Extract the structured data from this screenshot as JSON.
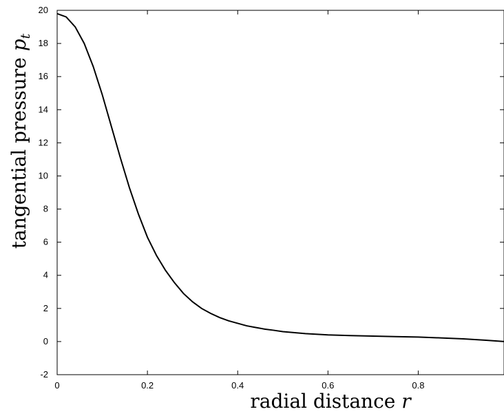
{
  "chart_data": {
    "type": "line",
    "xlabel": "radial distance",
    "xlabel_var": "r",
    "ylabel": "tangential pressure",
    "ylabel_var": "p",
    "ylabel_sub": "t",
    "xlim": [
      0,
      0.99
    ],
    "ylim": [
      -2,
      20
    ],
    "xticks": [
      0,
      0.2,
      0.4,
      0.6,
      0.8
    ],
    "xtick_labels": [
      "0",
      "0.2",
      "0.4",
      "0.6",
      "0.8"
    ],
    "yticks": [
      -2,
      0,
      2,
      4,
      6,
      8,
      10,
      12,
      14,
      16,
      18,
      20
    ],
    "ytick_labels": [
      "-2",
      "0",
      "2",
      "4",
      "6",
      "8",
      "10",
      "12",
      "14",
      "16",
      "18",
      "20"
    ],
    "grid": false,
    "series": [
      {
        "color": "#000000",
        "x": [
          0,
          0.02,
          0.04,
          0.06,
          0.08,
          0.1,
          0.12,
          0.14,
          0.16,
          0.18,
          0.2,
          0.22,
          0.24,
          0.26,
          0.28,
          0.3,
          0.32,
          0.34,
          0.36,
          0.38,
          0.4,
          0.42,
          0.44,
          0.46,
          0.48,
          0.5,
          0.55,
          0.6,
          0.65,
          0.7,
          0.75,
          0.8,
          0.85,
          0.9,
          0.95,
          0.99
        ],
        "y": [
          19.8,
          19.6,
          19.0,
          18.0,
          16.6,
          14.9,
          13.0,
          11.1,
          9.3,
          7.7,
          6.3,
          5.2,
          4.3,
          3.55,
          2.9,
          2.4,
          2.0,
          1.7,
          1.45,
          1.25,
          1.1,
          0.95,
          0.85,
          0.75,
          0.68,
          0.6,
          0.48,
          0.4,
          0.36,
          0.33,
          0.3,
          0.27,
          0.22,
          0.16,
          0.08,
          0.0
        ]
      }
    ]
  }
}
